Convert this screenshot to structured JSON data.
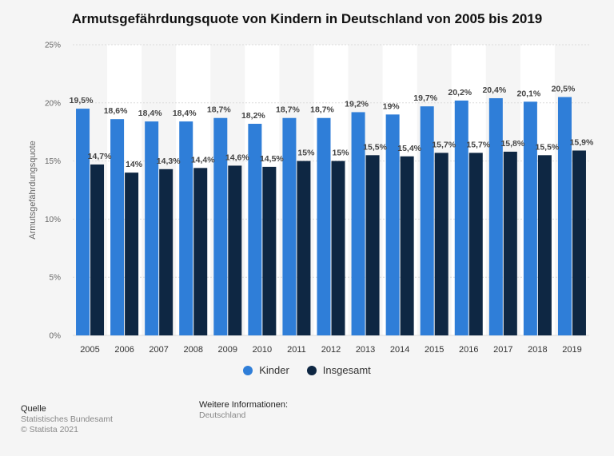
{
  "chart_data": {
    "type": "bar",
    "title": "Armutsgefährdungsquote von Kindern in Deutschland von 2005 bis 2019",
    "xlabel": "",
    "ylabel": "Armutsgefährdungsquote",
    "ylim": [
      0,
      25
    ],
    "yticks": [
      "0%",
      "5%",
      "10%",
      "15%",
      "20%",
      "25%"
    ],
    "categories": [
      "2005",
      "2006",
      "2007",
      "2008",
      "2009",
      "2010",
      "2011",
      "2012",
      "2013",
      "2014",
      "2015",
      "2016",
      "2017",
      "2018",
      "2019"
    ],
    "series": [
      {
        "name": "Kinder",
        "color": "#2f7ed8",
        "values": [
          19.5,
          18.6,
          18.4,
          18.4,
          18.7,
          18.2,
          18.7,
          18.7,
          19.2,
          19,
          19.7,
          20.2,
          20.4,
          20.1,
          20.5
        ],
        "labels": [
          "19,5%",
          "18,6%",
          "18,4%",
          "18,4%",
          "18,7%",
          "18,2%",
          "18,7%",
          "18,7%",
          "19,2%",
          "19%",
          "19,7%",
          "20,2%",
          "20,4%",
          "20,1%",
          "20,5%"
        ]
      },
      {
        "name": "Insgesamt",
        "color": "#0e2743",
        "values": [
          14.7,
          14,
          14.3,
          14.4,
          14.6,
          14.5,
          15,
          15,
          15.5,
          15.4,
          15.7,
          15.7,
          15.8,
          15.5,
          15.9
        ],
        "labels": [
          "14,7%",
          "14%",
          "14,3%",
          "14,4%",
          "14,6%",
          "14,5%",
          "15%",
          "15%",
          "15,5%",
          "15,4%",
          "15,7%",
          "15,7%",
          "15,8%",
          "15,5%",
          "15,9%"
        ]
      }
    ],
    "grid": true,
    "legend": "bottom-center"
  },
  "footer": {
    "source_heading": "Quelle",
    "source_name": "Statistisches Bundesamt",
    "copyright": "© Statista 2021",
    "info_heading": "Weitere Informationen:",
    "info_text": "Deutschland"
  }
}
